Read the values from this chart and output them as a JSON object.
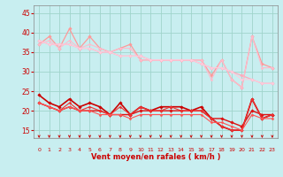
{
  "xlabel": "Vent moyen/en rafales ( km/h )",
  "x": [
    0,
    1,
    2,
    3,
    4,
    5,
    6,
    7,
    8,
    9,
    10,
    11,
    12,
    13,
    14,
    15,
    16,
    17,
    18,
    19,
    20,
    21,
    22,
    23
  ],
  "ylim": [
    13,
    47
  ],
  "yticks": [
    15,
    20,
    25,
    30,
    35,
    40,
    45
  ],
  "background_color": "#c8eef0",
  "grid_color": "#a0d4cc",
  "series_upper": [
    {
      "color": "#ff9999",
      "lw": 0.9,
      "marker": "D",
      "ms": 1.8,
      "data": [
        37,
        39,
        36,
        41,
        36,
        39,
        36,
        35,
        36,
        37,
        33,
        33,
        33,
        33,
        33,
        33,
        33,
        29,
        33,
        28,
        26,
        39,
        32,
        31
      ]
    },
    {
      "color": "#ffaabb",
      "lw": 0.9,
      "marker": "D",
      "ms": 1.8,
      "data": [
        38,
        37,
        37,
        37,
        36,
        36,
        35,
        35,
        34,
        34,
        34,
        33,
        33,
        33,
        33,
        33,
        32,
        31,
        31,
        30,
        29,
        28,
        27,
        27
      ]
    },
    {
      "color": "#ffbbcc",
      "lw": 0.8,
      "marker": "D",
      "ms": 1.5,
      "data": [
        37,
        38,
        36,
        38,
        36,
        37,
        36,
        35,
        36,
        36,
        33,
        33,
        33,
        33,
        33,
        33,
        33,
        28,
        33,
        28,
        26,
        39,
        31,
        31
      ]
    },
    {
      "color": "#ffccdd",
      "lw": 0.8,
      "marker": "D",
      "ms": 1.5,
      "data": [
        38,
        37,
        37,
        37,
        36,
        36,
        35,
        35,
        34,
        34,
        34,
        33,
        33,
        33,
        33,
        33,
        32,
        31,
        31,
        30,
        28,
        28,
        27,
        27
      ]
    }
  ],
  "series_lower": [
    {
      "color": "#cc0000",
      "lw": 1.2,
      "marker": "D",
      "ms": 1.8,
      "data": [
        24,
        22,
        21,
        23,
        21,
        22,
        21,
        19,
        22,
        19,
        21,
        20,
        21,
        21,
        21,
        20,
        21,
        18,
        16,
        15,
        15,
        23,
        18,
        19
      ]
    },
    {
      "color": "#dd1111",
      "lw": 1.0,
      "marker": "D",
      "ms": 1.8,
      "data": [
        22,
        21,
        20,
        21,
        20,
        20,
        20,
        19,
        19,
        19,
        20,
        20,
        20,
        20,
        20,
        20,
        20,
        18,
        18,
        17,
        16,
        20,
        19,
        19
      ]
    },
    {
      "color": "#ee3333",
      "lw": 0.8,
      "marker": "D",
      "ms": 1.5,
      "data": [
        22,
        21,
        20,
        22,
        20,
        21,
        20,
        19,
        21,
        19,
        21,
        20,
        20,
        21,
        20,
        20,
        20,
        18,
        16,
        15,
        15,
        23,
        18,
        19
      ]
    },
    {
      "color": "#ff5555",
      "lw": 0.8,
      "marker": "D",
      "ms": 1.5,
      "data": [
        22,
        21,
        20,
        21,
        20,
        20,
        19,
        19,
        19,
        18,
        19,
        19,
        19,
        19,
        19,
        19,
        19,
        17,
        17,
        16,
        15,
        19,
        18,
        18
      ]
    }
  ],
  "arrow_color": "#cc0000",
  "tick_label_color": "#cc0000",
  "axis_label_color": "#cc0000",
  "ytick_color": "#cc0000",
  "spine_color": "#888888"
}
